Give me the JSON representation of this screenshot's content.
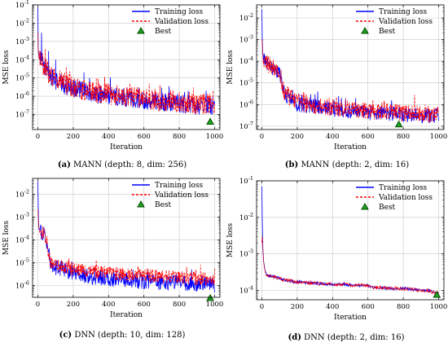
{
  "captions": [
    {
      "letter": "(a)",
      "text": " MANN (depth: 8, dim: 256)"
    },
    {
      "letter": "(b)",
      "text": " MANN (depth: 2, dim: 16)"
    },
    {
      "letter": "(c)",
      "text": " DNN (depth: 10, dim: 128)"
    },
    {
      "letter": "(d)",
      "text": " DNN (depth: 2, dim: 16)"
    }
  ],
  "legend": {
    "training": "Training loss",
    "validation": "Validation loss",
    "best": "Best"
  },
  "colors": {
    "training": "#0000ff",
    "validation": "#ff0000",
    "best_fill": "#22a022",
    "best_edge": "#005000",
    "grid": "#c8c8c8"
  },
  "chart_data": [
    {
      "type": "line",
      "title": "",
      "xlabel": "Iteration",
      "ylabel": "MSE loss",
      "yscale": "log",
      "xlim": [
        -30,
        1030
      ],
      "ylim": [
        1.5e-08,
        0.1
      ],
      "xticks": [
        0,
        200,
        400,
        600,
        800,
        1000
      ],
      "yticks": [
        {
          "exp": -7,
          "label": "10-7"
        },
        {
          "exp": -6,
          "label": "10-6"
        },
        {
          "exp": -5,
          "label": "10-5"
        },
        {
          "exp": -4,
          "label": "10-4"
        },
        {
          "exp": -3,
          "label": "10-3"
        },
        {
          "exp": -2,
          "label": "10-2"
        },
        {
          "exp": -1,
          "label": "10-1"
        }
      ],
      "grid": true,
      "legend_position": "top-right",
      "series": [
        {
          "name": "Training loss",
          "key": "training",
          "x": [
            0,
            2,
            5,
            10,
            20,
            40,
            60,
            80,
            100,
            150,
            200,
            300,
            400,
            500,
            600,
            700,
            800,
            900,
            950,
            980,
            1000
          ],
          "y": [
            0.08,
            0.0003,
            0.0002,
            0.0001,
            8e-05,
            4e-05,
            2e-05,
            1e-05,
            7e-06,
            4e-06,
            3e-06,
            1.5e-06,
            1e-06,
            8e-07,
            6e-07,
            5e-07,
            4e-07,
            3e-07,
            3e-07,
            3e-07,
            3e-07
          ],
          "noise": 0.5,
          "spikes": [
            [
              20,
              0.003
            ],
            [
              60,
              0.0003
            ],
            [
              100,
              0.0001
            ],
            [
              170,
              1e-05
            ],
            [
              260,
              2e-05
            ],
            [
              395,
              3e-06
            ],
            [
              570,
              3e-06
            ],
            [
              700,
              3e-06
            ],
            [
              850,
              2e-06
            ],
            [
              975,
              1e-06
            ]
          ]
        },
        {
          "name": "Validation loss",
          "key": "validation",
          "x": [
            0,
            2,
            5,
            10,
            20,
            40,
            60,
            80,
            100,
            150,
            200,
            300,
            400,
            500,
            600,
            700,
            800,
            900,
            950,
            980,
            1000
          ],
          "y": [
            0.003,
            0.0003,
            0.0002,
            0.0001,
            8e-05,
            4e-05,
            2e-05,
            1e-05,
            8e-06,
            5e-06,
            3e-06,
            1.8e-06,
            1.2e-06,
            9e-07,
            7e-07,
            6e-07,
            5e-07,
            4e-07,
            4e-07,
            4e-07,
            4e-07
          ],
          "noise": 0.6,
          "spikes": [
            [
              40,
              0.0004
            ],
            [
              160,
              4e-05
            ],
            [
              330,
              1e-05
            ],
            [
              520,
              5e-06
            ],
            [
              690,
              4e-06
            ],
            [
              880,
              3e-06
            ],
            [
              990,
              2e-06
            ]
          ]
        }
      ],
      "best": {
        "x": 975,
        "y": 4e-08
      }
    },
    {
      "type": "line",
      "title": "",
      "xlabel": "Iteration",
      "ylabel": "MSE loss",
      "yscale": "log",
      "xlim": [
        -30,
        1030
      ],
      "ylim": [
        7e-08,
        0.04
      ],
      "xticks": [
        0,
        200,
        400,
        600,
        800,
        1000
      ],
      "yticks": [
        {
          "exp": -7,
          "label": "10-7"
        },
        {
          "exp": -6,
          "label": "10-6"
        },
        {
          "exp": -5,
          "label": "10-5"
        },
        {
          "exp": -4,
          "label": "10-4"
        },
        {
          "exp": -3,
          "label": "10-3"
        },
        {
          "exp": -2,
          "label": "10-2"
        }
      ],
      "grid": true,
      "legend_position": "top-right",
      "series": [
        {
          "name": "Training loss",
          "key": "training",
          "x": [
            0,
            2,
            5,
            10,
            20,
            40,
            60,
            80,
            100,
            110,
            120,
            130,
            140,
            160,
            180,
            200,
            300,
            400,
            500,
            600,
            700,
            800,
            900,
            1000
          ],
          "y": [
            0.025,
            0.0012,
            0.0002,
            0.00012,
            8e-05,
            7e-05,
            5e-05,
            4e-05,
            3e-05,
            1.5e-05,
            5e-06,
            3e-06,
            2.5e-06,
            2e-06,
            1.5e-06,
            1e-06,
            8e-07,
            6e-07,
            5e-07,
            4e-07,
            4e-07,
            3.5e-07,
            3e-07,
            3e-07
          ],
          "noise": 0.35,
          "spikes": [
            [
              210,
              3e-06
            ],
            [
              300,
              3e-06
            ],
            [
              450,
              2e-06
            ],
            [
              530,
              2e-06
            ]
          ]
        },
        {
          "name": "Validation loss",
          "key": "validation",
          "x": [
            0,
            2,
            5,
            10,
            20,
            40,
            60,
            80,
            100,
            110,
            120,
            130,
            140,
            160,
            180,
            200,
            300,
            400,
            500,
            600,
            700,
            800,
            900,
            1000
          ],
          "y": [
            0.001,
            0.0008,
            0.0002,
            0.00012,
            8e-05,
            7e-05,
            5e-05,
            4e-05,
            3e-05,
            1.6e-05,
            6e-06,
            3.5e-06,
            3e-06,
            2.2e-06,
            1.8e-06,
            1.2e-06,
            9e-07,
            7e-07,
            6e-07,
            5e-07,
            5e-07,
            4e-07,
            3.5e-07,
            3.5e-07
          ],
          "noise": 0.4,
          "spikes": [
            [
              250,
              3e-06
            ],
            [
              380,
              2e-06
            ],
            [
              690,
              1.5e-06
            ]
          ]
        }
      ],
      "best": {
        "x": 775,
        "y": 1.2e-07
      }
    },
    {
      "type": "line",
      "title": "",
      "xlabel": "Iteration",
      "ylabel": "MSE loss",
      "yscale": "log",
      "xlim": [
        -30,
        1030
      ],
      "ylim": [
        3e-07,
        0.05
      ],
      "xticks": [
        0,
        200,
        400,
        600,
        800,
        1000
      ],
      "yticks": [
        {
          "exp": -6,
          "label": "10-6"
        },
        {
          "exp": -5,
          "label": "10-5"
        },
        {
          "exp": -4,
          "label": "10-4"
        },
        {
          "exp": -3,
          "label": "10-3"
        },
        {
          "exp": -2,
          "label": "10-2"
        }
      ],
      "grid": true,
      "legend_position": "top-right",
      "series": [
        {
          "name": "Training loss",
          "key": "training",
          "x": [
            0,
            2,
            5,
            10,
            20,
            30,
            40,
            50,
            60,
            70,
            80,
            100,
            150,
            200,
            300,
            400,
            500,
            600,
            700,
            800,
            900,
            1000
          ],
          "y": [
            0.04,
            0.003,
            0.0003,
            0.00025,
            0.00022,
            0.0002,
            0.00015,
            6e-05,
            2e-05,
            1e-05,
            8e-06,
            6e-06,
            4.5e-06,
            3.5e-06,
            2.5e-06,
            2e-06,
            1.8e-06,
            1.5e-06,
            1.4e-06,
            1.3e-06,
            1.2e-06,
            1.1e-06
          ],
          "noise": 0.35,
          "spikes": []
        },
        {
          "name": "Validation loss",
          "key": "validation",
          "x": [
            0,
            2,
            5,
            10,
            20,
            30,
            40,
            50,
            60,
            70,
            80,
            100,
            150,
            200,
            300,
            400,
            500,
            600,
            700,
            800,
            900,
            1000
          ],
          "y": [
            0.002,
            0.001,
            0.0003,
            0.00025,
            0.00022,
            0.0002,
            0.00015,
            6e-05,
            2e-05,
            1.2e-05,
            1e-05,
            8e-06,
            6.5e-06,
            5e-06,
            4.2e-06,
            3.5e-06,
            3e-06,
            2.7e-06,
            2.4e-06,
            2.2e-06,
            2e-06,
            1.9e-06
          ],
          "noise": 0.3,
          "spikes": [
            [
              920,
              8e-06
            ]
          ]
        }
      ],
      "best": {
        "x": 975,
        "y": 2.8e-07
      }
    },
    {
      "type": "line",
      "title": "",
      "xlabel": "Iteration",
      "ylabel": "MSE loss",
      "yscale": "log",
      "xlim": [
        -30,
        1030
      ],
      "ylim": [
        5.5e-05,
        0.1
      ],
      "xticks": [
        0,
        200,
        400,
        600,
        800,
        1000
      ],
      "yticks": [
        {
          "exp": -4,
          "label": "10-4"
        },
        {
          "exp": -3,
          "label": "10-3"
        },
        {
          "exp": -2,
          "label": "10-2"
        },
        {
          "exp": -1,
          "label": "10-1"
        }
      ],
      "grid": true,
      "legend_position": "top-right",
      "series": [
        {
          "name": "Training loss",
          "key": "training",
          "x": [
            0,
            2,
            5,
            10,
            15,
            20,
            30,
            40,
            60,
            80,
            100,
            150,
            200,
            300,
            400,
            500,
            600,
            620,
            700,
            800,
            900,
            950,
            1000
          ],
          "y": [
            0.07,
            0.01,
            0.0015,
            0.0006,
            0.0004,
            0.0003,
            0.00026,
            0.00025,
            0.00024,
            0.00023,
            0.00021,
            0.00018,
            0.00017,
            0.000155,
            0.000145,
            0.00014,
            0.000135,
            0.00012,
            0.000115,
            0.00011,
            0.0001,
            9.5e-05,
            8e-05
          ],
          "noise": 0.04,
          "spikes": []
        },
        {
          "name": "Validation loss",
          "key": "validation",
          "x": [
            0,
            2,
            5,
            10,
            15,
            20,
            30,
            40,
            60,
            80,
            100,
            150,
            200,
            300,
            400,
            500,
            600,
            620,
            700,
            800,
            900,
            950,
            1000
          ],
          "y": [
            0.002,
            0.003,
            0.0015,
            0.0006,
            0.0004,
            0.0003,
            0.00026,
            0.00025,
            0.00024,
            0.00023,
            0.00021,
            0.00018,
            0.00017,
            0.000155,
            0.000145,
            0.00014,
            0.000135,
            0.00012,
            0.000115,
            0.00011,
            0.0001,
            9.5e-05,
            8e-05
          ],
          "noise": 0.05,
          "spikes": []
        }
      ],
      "best": {
        "x": 990,
        "y": 7.5e-05
      }
    }
  ]
}
